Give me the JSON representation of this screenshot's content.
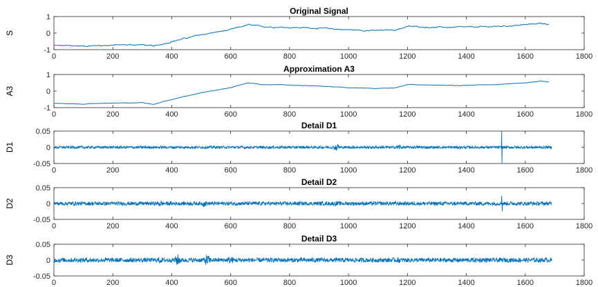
{
  "figure": {
    "line_color": "#0072BD",
    "axis_color": "#262626"
  },
  "chart_data": [
    {
      "type": "line",
      "title": "Original Signal",
      "ylabel": "S",
      "xlim": [
        0,
        1800
      ],
      "ylim": [
        -1,
        1
      ],
      "xticks": [
        0,
        200,
        400,
        600,
        800,
        1000,
        1200,
        1400,
        1600,
        1800
      ],
      "yticks": [
        -1,
        0,
        1
      ],
      "series": [
        {
          "kind": "smooth",
          "x": [
            0,
            100,
            200,
            300,
            340,
            400,
            500,
            600,
            660,
            700,
            800,
            900,
            1000,
            1100,
            1160,
            1200,
            1300,
            1400,
            1500,
            1600,
            1650,
            1680
          ],
          "y": [
            -0.75,
            -0.78,
            -0.72,
            -0.7,
            -0.8,
            -0.5,
            -0.1,
            0.2,
            0.5,
            0.4,
            0.35,
            0.3,
            0.2,
            0.15,
            0.2,
            0.4,
            0.35,
            0.35,
            0.4,
            0.5,
            0.6,
            0.55
          ],
          "noise": 0.04
        }
      ]
    },
    {
      "type": "line",
      "title": "Approximation A3",
      "ylabel": "A3",
      "xlim": [
        0,
        1800
      ],
      "ylim": [
        -1,
        1
      ],
      "xticks": [
        0,
        200,
        400,
        600,
        800,
        1000,
        1200,
        1400,
        1600,
        1800
      ],
      "yticks": [
        -1,
        0,
        1
      ],
      "series": [
        {
          "kind": "smooth",
          "x": [
            0,
            100,
            200,
            300,
            340,
            400,
            500,
            600,
            660,
            700,
            800,
            900,
            1000,
            1100,
            1160,
            1200,
            1300,
            1400,
            1500,
            1600,
            1650,
            1680
          ],
          "y": [
            -0.75,
            -0.78,
            -0.72,
            -0.7,
            -0.8,
            -0.5,
            -0.1,
            0.2,
            0.5,
            0.4,
            0.35,
            0.3,
            0.2,
            0.15,
            0.2,
            0.4,
            0.35,
            0.35,
            0.4,
            0.5,
            0.6,
            0.55
          ],
          "noise": 0.015
        }
      ]
    },
    {
      "type": "line",
      "title": "Detail D1",
      "ylabel": "D1",
      "xlim": [
        0,
        1800
      ],
      "ylim": [
        -0.05,
        0.05
      ],
      "xticks": [
        0,
        200,
        400,
        600,
        800,
        1000,
        1200,
        1400,
        1600,
        1800
      ],
      "yticks": [
        -0.05,
        0,
        0.05
      ],
      "series": [
        {
          "kind": "detail",
          "x_end": 1690,
          "amp": 0.004,
          "bursts": [
            [
              960,
              0.012
            ],
            [
              1170,
              0.01
            ],
            [
              360,
              0.006
            ],
            [
              540,
              0.006
            ]
          ],
          "spikes": [
            [
              1520,
              0.05
            ],
            [
              1521,
              -0.05
            ],
            [
              965,
              0.008
            ],
            [
              1175,
              0.007
            ]
          ]
        }
      ]
    },
    {
      "type": "line",
      "title": "Detail D2",
      "ylabel": "D2",
      "xlim": [
        0,
        1800
      ],
      "ylim": [
        -0.05,
        0.05
      ],
      "xticks": [
        0,
        200,
        400,
        600,
        800,
        1000,
        1200,
        1400,
        1600,
        1800
      ],
      "yticks": [
        -0.05,
        0,
        0.05
      ],
      "series": [
        {
          "kind": "detail",
          "x_end": 1690,
          "amp": 0.006,
          "bursts": [
            [
              360,
              0.012
            ],
            [
              510,
              0.011
            ],
            [
              960,
              0.009
            ],
            [
              1170,
              0.008
            ],
            [
              1620,
              0.008
            ]
          ],
          "spikes": [
            [
              1520,
              0.025
            ],
            [
              1522,
              -0.025
            ]
          ]
        }
      ]
    },
    {
      "type": "line",
      "title": "Detail D3",
      "ylabel": "D3",
      "xlim": [
        0,
        1800
      ],
      "ylim": [
        -0.05,
        0.05
      ],
      "xticks": [
        0,
        200,
        400,
        600,
        800,
        1000,
        1200,
        1400,
        1600,
        1800
      ],
      "yticks": [
        -0.05,
        0,
        0.05
      ],
      "series": [
        {
          "kind": "detail",
          "x_end": 1690,
          "amp": 0.007,
          "bursts": [
            [
              420,
              0.02
            ],
            [
              520,
              0.02
            ],
            [
              600,
              0.015
            ],
            [
              360,
              0.012
            ],
            [
              1170,
              0.01
            ],
            [
              1620,
              0.008
            ]
          ],
          "spikes": []
        }
      ]
    }
  ]
}
